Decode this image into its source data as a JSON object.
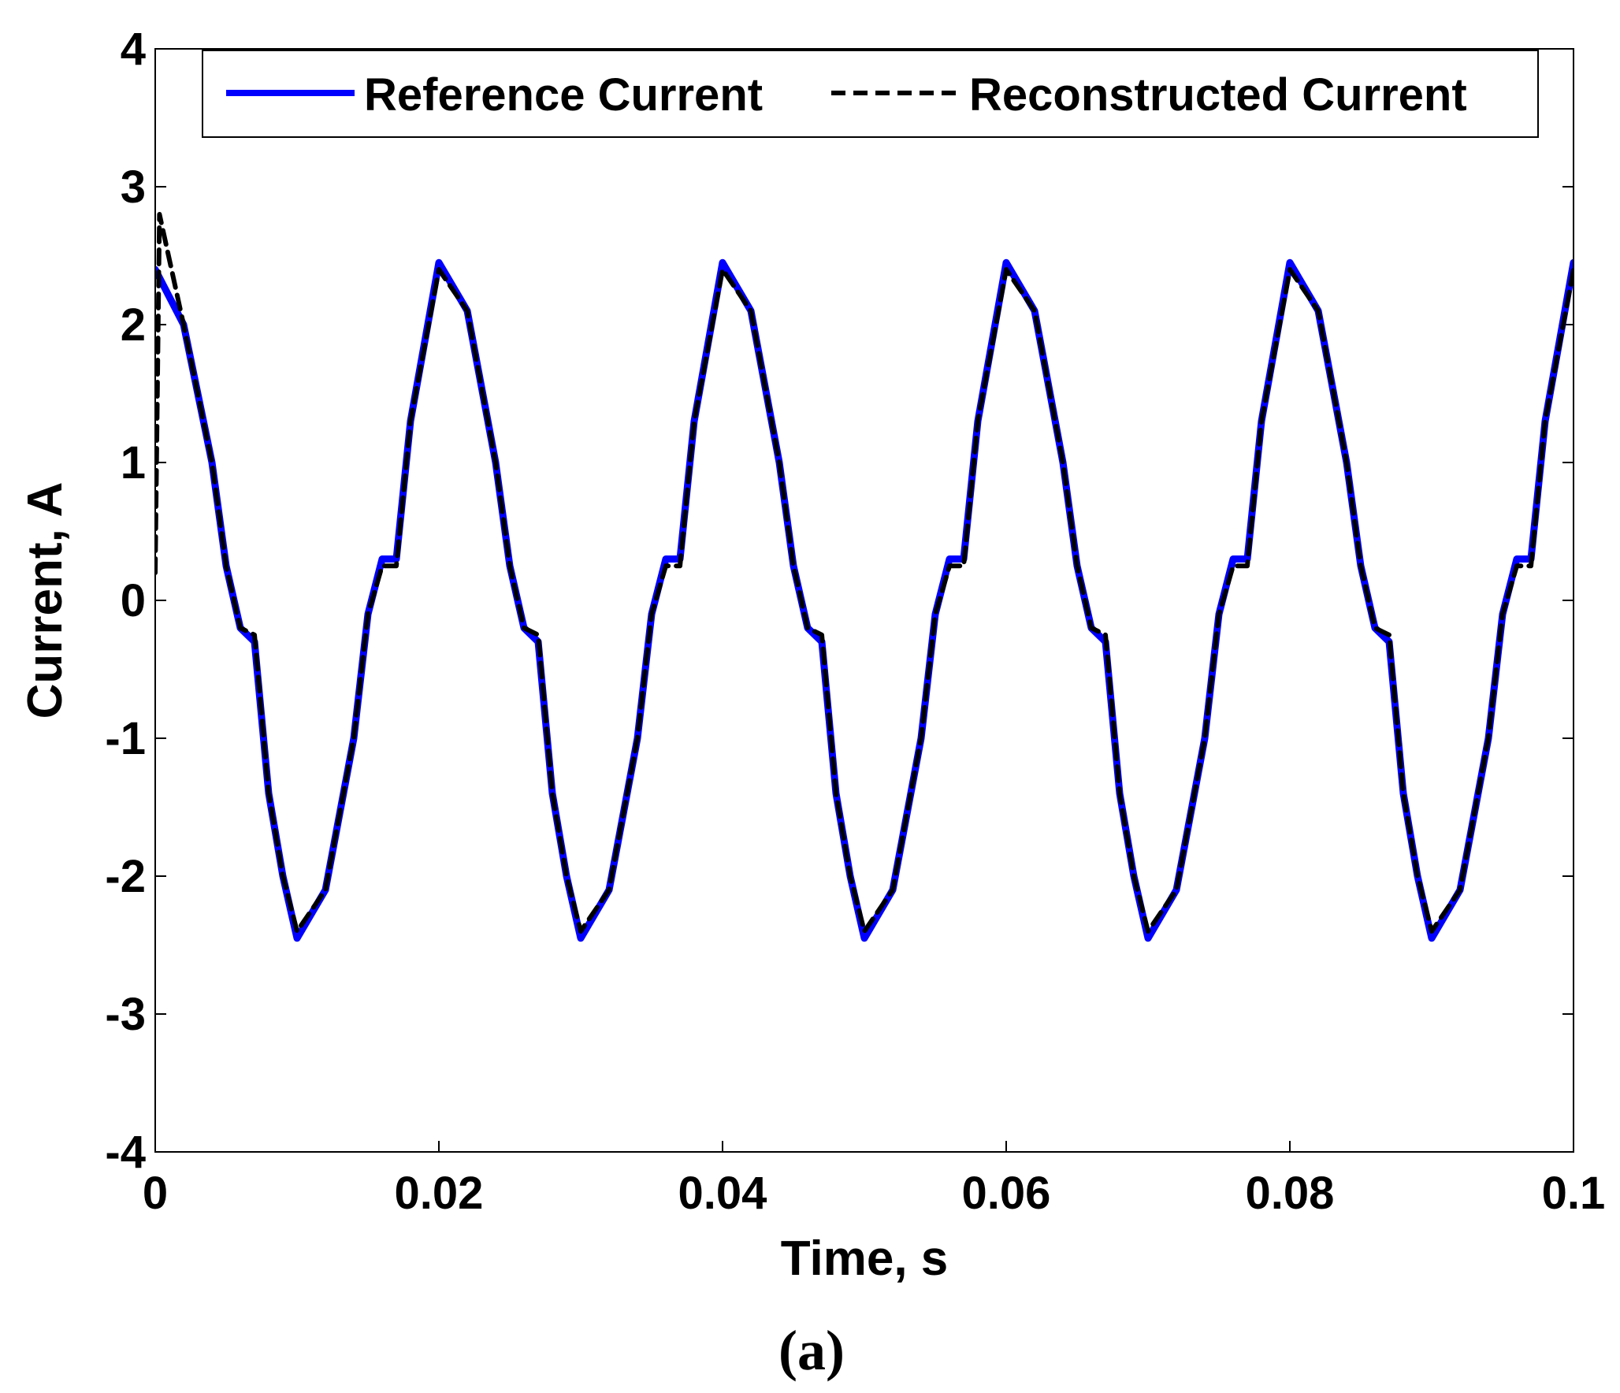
{
  "chart_data": {
    "type": "line",
    "title": "",
    "xlabel": "Time, s",
    "ylabel": "Current, A",
    "caption": "(a)",
    "xlim": [
      0,
      0.1
    ],
    "ylim": [
      -4,
      4
    ],
    "xticks": [
      0,
      0.02,
      0.04,
      0.06,
      0.08,
      0.1
    ],
    "xtick_labels": [
      "0",
      "0.02",
      "0.04",
      "0.06",
      "0.08",
      "0.1"
    ],
    "yticks": [
      -4,
      -3,
      -2,
      -1,
      0,
      1,
      2,
      3,
      4
    ],
    "ytick_labels": [
      "-4",
      "-3",
      "-2",
      "-1",
      "0",
      "1",
      "2",
      "3",
      "4"
    ],
    "grid": false,
    "legend_position": "top",
    "series": [
      {
        "name": "Reference Current",
        "color": "#0000ff",
        "style": "solid",
        "x": [
          0,
          0.002,
          0.004,
          0.005,
          0.006,
          0.007,
          0.008,
          0.009,
          0.01,
          0.012,
          0.014,
          0.015,
          0.016,
          0.017,
          0.018,
          0.02,
          0.022,
          0.024,
          0.025,
          0.026,
          0.027,
          0.028,
          0.029,
          0.03,
          0.032,
          0.034,
          0.035,
          0.036,
          0.037,
          0.038,
          0.04,
          0.042,
          0.044,
          0.045,
          0.046,
          0.047,
          0.048,
          0.049,
          0.05,
          0.052,
          0.054,
          0.055,
          0.056,
          0.057,
          0.058,
          0.06,
          0.062,
          0.064,
          0.065,
          0.066,
          0.067,
          0.068,
          0.069,
          0.07,
          0.072,
          0.074,
          0.075,
          0.076,
          0.077,
          0.078,
          0.08,
          0.082,
          0.084,
          0.085,
          0.086,
          0.087,
          0.088,
          0.089,
          0.09,
          0.092,
          0.094,
          0.095,
          0.096,
          0.097,
          0.098,
          0.1
        ],
        "y": [
          2.4,
          2.0,
          1.0,
          0.25,
          -0.2,
          -0.3,
          -1.4,
          -2.0,
          -2.45,
          -2.1,
          -1.0,
          -0.1,
          0.3,
          0.3,
          1.3,
          2.45,
          2.1,
          1.0,
          0.25,
          -0.2,
          -0.3,
          -1.4,
          -2.0,
          -2.45,
          -2.1,
          -1.0,
          -0.1,
          0.3,
          0.3,
          1.3,
          2.45,
          2.1,
          1.0,
          0.25,
          -0.2,
          -0.3,
          -1.4,
          -2.0,
          -2.45,
          -2.1,
          -1.0,
          -0.1,
          0.3,
          0.3,
          1.3,
          2.45,
          2.1,
          1.0,
          0.25,
          -0.2,
          -0.3,
          -1.4,
          -2.0,
          -2.45,
          -2.1,
          -1.0,
          -0.1,
          0.3,
          0.3,
          1.3,
          2.45,
          2.1,
          1.0,
          0.25,
          -0.2,
          -0.3,
          -1.4,
          -2.0,
          -2.45,
          -2.1,
          -1.0,
          -0.1,
          0.3,
          0.3,
          1.3,
          2.45
        ]
      },
      {
        "name": "Reconstructed Current",
        "color": "#000000",
        "style": "dashed",
        "x": [
          0,
          0.0003,
          0.002,
          0.004,
          0.005,
          0.006,
          0.007,
          0.008,
          0.009,
          0.01,
          0.012,
          0.014,
          0.015,
          0.016,
          0.017,
          0.018,
          0.02,
          0.022,
          0.024,
          0.025,
          0.026,
          0.027,
          0.028,
          0.029,
          0.03,
          0.032,
          0.034,
          0.035,
          0.036,
          0.037,
          0.038,
          0.04,
          0.042,
          0.044,
          0.045,
          0.046,
          0.047,
          0.048,
          0.049,
          0.05,
          0.052,
          0.054,
          0.055,
          0.056,
          0.057,
          0.058,
          0.06,
          0.062,
          0.064,
          0.065,
          0.066,
          0.067,
          0.068,
          0.069,
          0.07,
          0.072,
          0.074,
          0.075,
          0.076,
          0.077,
          0.078,
          0.08,
          0.082,
          0.084,
          0.085,
          0.086,
          0.087,
          0.088,
          0.089,
          0.09,
          0.092,
          0.094,
          0.095,
          0.096,
          0.097,
          0.098,
          0.1
        ],
        "y": [
          0.2,
          2.8,
          2.0,
          1.0,
          0.25,
          -0.2,
          -0.25,
          -1.4,
          -2.0,
          -2.4,
          -2.1,
          -1.0,
          -0.1,
          0.25,
          0.25,
          1.3,
          2.4,
          2.1,
          1.0,
          0.25,
          -0.2,
          -0.25,
          -1.4,
          -2.0,
          -2.4,
          -2.1,
          -1.0,
          -0.1,
          0.25,
          0.25,
          1.3,
          2.4,
          2.1,
          1.0,
          0.25,
          -0.2,
          -0.25,
          -1.4,
          -2.0,
          -2.4,
          -2.1,
          -1.0,
          -0.1,
          0.25,
          0.25,
          1.3,
          2.4,
          2.1,
          1.0,
          0.25,
          -0.2,
          -0.25,
          -1.4,
          -2.0,
          -2.4,
          -2.1,
          -1.0,
          -0.1,
          0.25,
          0.25,
          1.3,
          2.4,
          2.1,
          1.0,
          0.25,
          -0.2,
          -0.25,
          -1.4,
          -2.0,
          -2.4,
          -2.1,
          -1.0,
          -0.1,
          0.25,
          0.25,
          1.3,
          2.4
        ]
      }
    ]
  }
}
